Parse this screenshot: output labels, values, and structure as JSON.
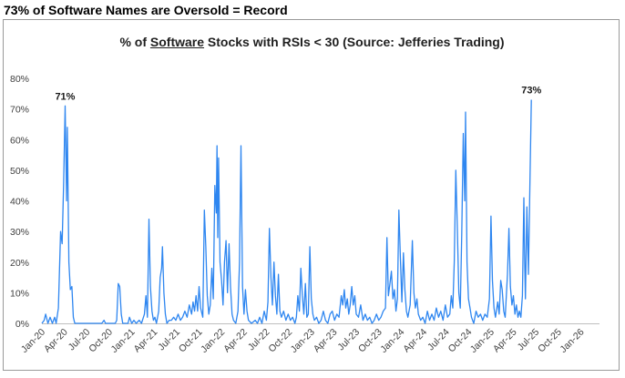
{
  "header": {
    "title": "73% of Software Names are Oversold = Record"
  },
  "chart_data": {
    "type": "line",
    "title_prefix": "% of ",
    "title_underlined": "Software",
    "title_suffix": " Stocks with RSIs < 30 (Source: Jefferies Trading)",
    "ylim": [
      0,
      80
    ],
    "yticks": [
      "0%",
      "10%",
      "20%",
      "30%",
      "40%",
      "50%",
      "60%",
      "70%",
      "80%"
    ],
    "xticks": [
      "Jan-20",
      "Apr-20",
      "Jul-20",
      "Oct-20",
      "Jan-21",
      "Apr-21",
      "Jul-21",
      "Oct-21",
      "Jan-22",
      "Apr-22",
      "Jul-22",
      "Oct-22",
      "Jan-23",
      "Apr-23",
      "Jul-23",
      "Oct-23",
      "Jan-24",
      "Apr-24",
      "Jul-24",
      "Oct-24",
      "Jan-25",
      "Apr-25",
      "Jul-25",
      "Oct-25",
      "Jan-26"
    ],
    "x_months_range": [
      0,
      74.5
    ],
    "line_color": "#2e86f0",
    "series": [
      {
        "name": "% of Software Stocks with RSI < 30",
        "points": [
          [
            0,
            0
          ],
          [
            0.3,
            1
          ],
          [
            0.5,
            3
          ],
          [
            0.8,
            0
          ],
          [
            1.1,
            2
          ],
          [
            1.4,
            0
          ],
          [
            1.7,
            2
          ],
          [
            1.9,
            0
          ],
          [
            2.2,
            5
          ],
          [
            2.5,
            30
          ],
          [
            2.7,
            26
          ],
          [
            2.9,
            45
          ],
          [
            3.1,
            71
          ],
          [
            3.3,
            40
          ],
          [
            3.4,
            64
          ],
          [
            3.6,
            20
          ],
          [
            3.8,
            11
          ],
          [
            4.0,
            12
          ],
          [
            4.2,
            2
          ],
          [
            4.4,
            0
          ],
          [
            6,
            0
          ],
          [
            8,
            0
          ],
          [
            8.3,
            1
          ],
          [
            8.5,
            0
          ],
          [
            9.8,
            0
          ],
          [
            10.0,
            1
          ],
          [
            10.2,
            13
          ],
          [
            10.4,
            12
          ],
          [
            10.6,
            3
          ],
          [
            10.8,
            0
          ],
          [
            11.5,
            0
          ],
          [
            11.7,
            2
          ],
          [
            12,
            0
          ],
          [
            12.3,
            1
          ],
          [
            12.6,
            0
          ],
          [
            13.0,
            1
          ],
          [
            13.3,
            0
          ],
          [
            13.7,
            3
          ],
          [
            13.9,
            9
          ],
          [
            14.1,
            2
          ],
          [
            14.3,
            34
          ],
          [
            14.5,
            12
          ],
          [
            14.7,
            4
          ],
          [
            14.9,
            1
          ],
          [
            15.1,
            2
          ],
          [
            15.3,
            0
          ],
          [
            15.6,
            4
          ],
          [
            15.8,
            15
          ],
          [
            16.0,
            18
          ],
          [
            16.1,
            25
          ],
          [
            16.3,
            10
          ],
          [
            16.5,
            3
          ],
          [
            16.7,
            0
          ],
          [
            17,
            1
          ],
          [
            17.3,
            1
          ],
          [
            17.6,
            2
          ],
          [
            17.9,
            1
          ],
          [
            18.2,
            3
          ],
          [
            18.5,
            1
          ],
          [
            18.8,
            2
          ],
          [
            19.1,
            4
          ],
          [
            19.4,
            2
          ],
          [
            19.7,
            6
          ],
          [
            20.0,
            3
          ],
          [
            20.2,
            7
          ],
          [
            20.4,
            4
          ],
          [
            20.6,
            9
          ],
          [
            20.8,
            4
          ],
          [
            21.0,
            12
          ],
          [
            21.2,
            5
          ],
          [
            21.5,
            2
          ],
          [
            21.7,
            37
          ],
          [
            21.9,
            25
          ],
          [
            22.1,
            9
          ],
          [
            22.3,
            3
          ],
          [
            22.5,
            6
          ],
          [
            22.7,
            18
          ],
          [
            22.9,
            8
          ],
          [
            23.1,
            45
          ],
          [
            23.3,
            36
          ],
          [
            23.4,
            58
          ],
          [
            23.5,
            28
          ],
          [
            23.6,
            54
          ],
          [
            23.8,
            20
          ],
          [
            24.0,
            14
          ],
          [
            24.2,
            6
          ],
          [
            24.4,
            20
          ],
          [
            24.6,
            27
          ],
          [
            24.8,
            10
          ],
          [
            25.0,
            26
          ],
          [
            25.2,
            12
          ],
          [
            25.4,
            3
          ],
          [
            25.6,
            1
          ],
          [
            25.9,
            0
          ],
          [
            26.2,
            4
          ],
          [
            26.4,
            20
          ],
          [
            26.6,
            58
          ],
          [
            26.8,
            12
          ],
          [
            27.0,
            3
          ],
          [
            27.2,
            11
          ],
          [
            27.4,
            4
          ],
          [
            27.6,
            1
          ],
          [
            28,
            0
          ],
          [
            28.5,
            1
          ],
          [
            28.8,
            0
          ],
          [
            29.1,
            2
          ],
          [
            29.4,
            0
          ],
          [
            29.7,
            4
          ],
          [
            30.0,
            1
          ],
          [
            30.2,
            7
          ],
          [
            30.4,
            31
          ],
          [
            30.6,
            15
          ],
          [
            30.8,
            6
          ],
          [
            31.0,
            20
          ],
          [
            31.2,
            9
          ],
          [
            31.4,
            3
          ],
          [
            31.6,
            16
          ],
          [
            31.8,
            4
          ],
          [
            32.0,
            2
          ],
          [
            32.3,
            4
          ],
          [
            32.6,
            1
          ],
          [
            32.9,
            3
          ],
          [
            33.2,
            1
          ],
          [
            33.5,
            2
          ],
          [
            33.8,
            0
          ],
          [
            34.0,
            2
          ],
          [
            34.2,
            9
          ],
          [
            34.4,
            4
          ],
          [
            34.6,
            18
          ],
          [
            34.8,
            9
          ],
          [
            35.0,
            3
          ],
          [
            35.2,
            13
          ],
          [
            35.4,
            2
          ],
          [
            35.6,
            3
          ],
          [
            35.8,
            25
          ],
          [
            36.0,
            8
          ],
          [
            36.2,
            3
          ],
          [
            36.4,
            1
          ],
          [
            36.7,
            2
          ],
          [
            37.0,
            0
          ],
          [
            37.3,
            1
          ],
          [
            37.6,
            4
          ],
          [
            37.9,
            1
          ],
          [
            38.2,
            0
          ],
          [
            38.5,
            3
          ],
          [
            38.8,
            4
          ],
          [
            39.1,
            1
          ],
          [
            39.4,
            3
          ],
          [
            39.7,
            2
          ],
          [
            40.0,
            9
          ],
          [
            40.2,
            6
          ],
          [
            40.4,
            11
          ],
          [
            40.6,
            5
          ],
          [
            40.8,
            8
          ],
          [
            41.0,
            3
          ],
          [
            41.2,
            6
          ],
          [
            41.4,
            12
          ],
          [
            41.6,
            6
          ],
          [
            41.8,
            9
          ],
          [
            42.0,
            3
          ],
          [
            42.3,
            2
          ],
          [
            42.6,
            6
          ],
          [
            42.9,
            1
          ],
          [
            43.2,
            3
          ],
          [
            43.5,
            1
          ],
          [
            43.8,
            2
          ],
          [
            44.1,
            0
          ],
          [
            44.4,
            1
          ],
          [
            44.7,
            3
          ],
          [
            45.0,
            1
          ],
          [
            45.3,
            2
          ],
          [
            45.6,
            4
          ],
          [
            45.9,
            5
          ],
          [
            46.1,
            28
          ],
          [
            46.3,
            9
          ],
          [
            46.5,
            13
          ],
          [
            46.7,
            17
          ],
          [
            46.9,
            8
          ],
          [
            47.1,
            11
          ],
          [
            47.3,
            4
          ],
          [
            47.5,
            8
          ],
          [
            47.7,
            37
          ],
          [
            47.9,
            21
          ],
          [
            48.1,
            7
          ],
          [
            48.3,
            23
          ],
          [
            48.5,
            11
          ],
          [
            48.7,
            4
          ],
          [
            48.9,
            2
          ],
          [
            49.2,
            6
          ],
          [
            49.5,
            27
          ],
          [
            49.7,
            10
          ],
          [
            49.9,
            5
          ],
          [
            50.1,
            8
          ],
          [
            50.3,
            3
          ],
          [
            50.6,
            1
          ],
          [
            50.9,
            2
          ],
          [
            51.2,
            0
          ],
          [
            51.5,
            4
          ],
          [
            51.8,
            1
          ],
          [
            52.1,
            3
          ],
          [
            52.4,
            1
          ],
          [
            52.7,
            5
          ],
          [
            53.0,
            2
          ],
          [
            53.3,
            4
          ],
          [
            53.6,
            1
          ],
          [
            53.9,
            6
          ],
          [
            54.2,
            2
          ],
          [
            54.5,
            3
          ],
          [
            54.7,
            9
          ],
          [
            54.9,
            5
          ],
          [
            55.1,
            20
          ],
          [
            55.3,
            50
          ],
          [
            55.5,
            32
          ],
          [
            55.7,
            10
          ],
          [
            55.9,
            5
          ],
          [
            56.1,
            29
          ],
          [
            56.3,
            62
          ],
          [
            56.5,
            40
          ],
          [
            56.6,
            69
          ],
          [
            56.8,
            20
          ],
          [
            57.0,
            8
          ],
          [
            57.2,
            5
          ],
          [
            57.4,
            2
          ],
          [
            57.7,
            0
          ],
          [
            58.0,
            4
          ],
          [
            58.3,
            2
          ],
          [
            58.6,
            3
          ],
          [
            58.9,
            1
          ],
          [
            59.2,
            3
          ],
          [
            59.5,
            2
          ],
          [
            59.8,
            8
          ],
          [
            60.0,
            35
          ],
          [
            60.2,
            14
          ],
          [
            60.4,
            5
          ],
          [
            60.6,
            2
          ],
          [
            60.9,
            7
          ],
          [
            61.1,
            3
          ],
          [
            61.3,
            14
          ],
          [
            61.5,
            11
          ],
          [
            61.7,
            4
          ],
          [
            61.9,
            2
          ],
          [
            62.2,
            16
          ],
          [
            62.4,
            31
          ],
          [
            62.6,
            12
          ],
          [
            62.8,
            6
          ],
          [
            63.0,
            9
          ],
          [
            63.2,
            3
          ],
          [
            63.4,
            6
          ],
          [
            63.6,
            2
          ],
          [
            63.8,
            4
          ],
          [
            64.0,
            2
          ],
          [
            64.2,
            9
          ],
          [
            64.4,
            41
          ],
          [
            64.5,
            20
          ],
          [
            64.6,
            8
          ],
          [
            64.8,
            38
          ],
          [
            65.0,
            16
          ],
          [
            65.2,
            45
          ],
          [
            65.4,
            73
          ]
        ]
      }
    ],
    "annotations": [
      {
        "text": "71%",
        "x": 3.1,
        "y": 71
      },
      {
        "text": "73%",
        "x": 65.4,
        "y": 73
      }
    ]
  }
}
